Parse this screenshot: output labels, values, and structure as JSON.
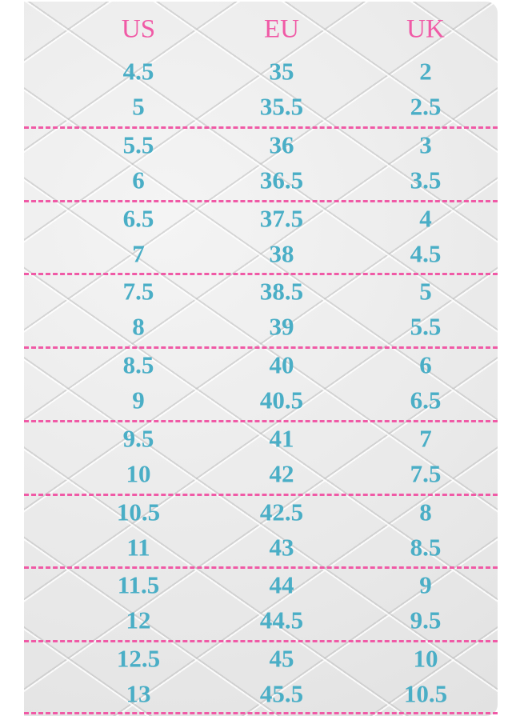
{
  "headers": [
    "US",
    "EU",
    "UK"
  ],
  "rows": [
    [
      "4.5",
      "35",
      "2"
    ],
    [
      "5",
      "35.5",
      "2.5"
    ],
    [
      "5.5",
      "36",
      "3"
    ],
    [
      "6",
      "36.5",
      "3.5"
    ],
    [
      "6.5",
      "37.5",
      "4"
    ],
    [
      "7",
      "38",
      "4.5"
    ],
    [
      "7.5",
      "38.5",
      "5"
    ],
    [
      "8",
      "39",
      "5.5"
    ],
    [
      "8.5",
      "40",
      "6"
    ],
    [
      "9",
      "40.5",
      "6.5"
    ],
    [
      "9.5",
      "41",
      "7"
    ],
    [
      "10",
      "42",
      "7.5"
    ],
    [
      "10.5",
      "42.5",
      "8"
    ],
    [
      "11",
      "43",
      "8.5"
    ],
    [
      "11.5",
      "44",
      "9"
    ],
    [
      "12",
      "44.5",
      "9.5"
    ],
    [
      "12.5",
      "45",
      "10"
    ],
    [
      "13",
      "45.5",
      "10.5"
    ]
  ],
  "colors": {
    "header": "#f05aa6",
    "value": "#4aaec6",
    "divider": "#f05aa6"
  }
}
